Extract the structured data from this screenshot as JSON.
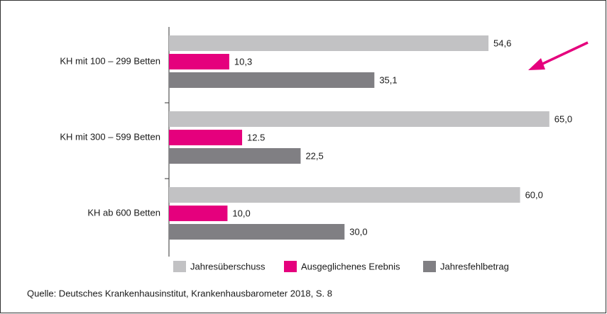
{
  "chart_data": {
    "type": "hbar",
    "categories": [
      "KH mit 100 – 299 Betten",
      "KH mit 300 – 599 Betten",
      "KH ab 600 Betten"
    ],
    "series": [
      {
        "name": "Jahresüberschuss",
        "color": "#c2c2c4",
        "values": [
          54.6,
          65.0,
          60.0
        ],
        "value_labels": [
          "54,6",
          "65,0",
          "60,0"
        ]
      },
      {
        "name": "Ausgeglichenes Erebnis",
        "color": "#e5007d",
        "values": [
          10.3,
          12.5,
          10.0
        ],
        "value_labels": [
          "10,3",
          "12.5",
          "10,0"
        ]
      },
      {
        "name": "Jahresfehlbetrag",
        "color": "#807f83",
        "values": [
          35.1,
          22.5,
          30.0
        ],
        "value_labels": [
          "35,1",
          "22,5",
          "30,0"
        ]
      }
    ],
    "xlim": [
      0,
      70
    ],
    "source": "Quelle: Deutsches Krankenhausinstitut, Krankenhausbarometer 2018, S. 8"
  }
}
